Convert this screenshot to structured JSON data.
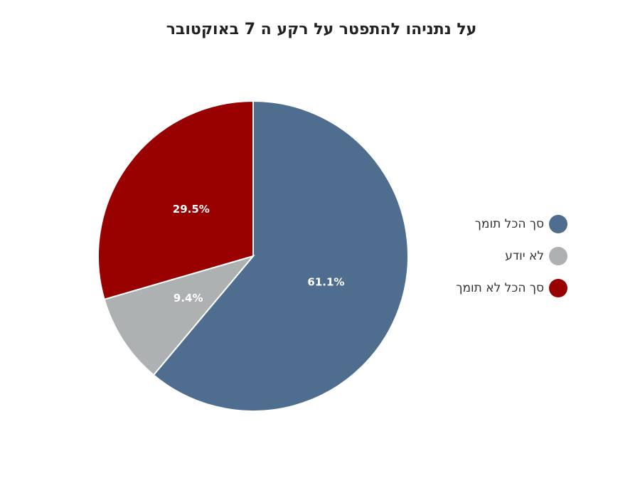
{
  "chart_data": {
    "type": "pie",
    "title": "על נתניהו להתפטר על רקע ה 7 באוקטובר",
    "categories": [
      "סך הכל תומך",
      "לא יודע",
      "סך הכל לא תומך"
    ],
    "values": [
      61.1,
      9.4,
      29.5
    ],
    "value_labels": [
      "61.1%",
      "9.4%",
      "29.5%"
    ],
    "colors": [
      "#4f6d8f",
      "#adb1b1",
      "#990000"
    ],
    "legend": "right"
  }
}
